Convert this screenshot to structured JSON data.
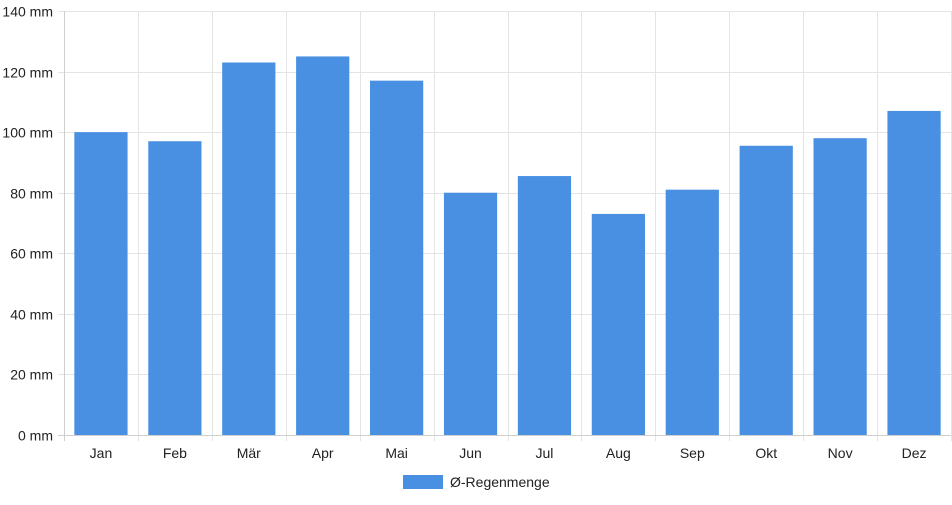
{
  "chart_data": {
    "type": "bar",
    "categories": [
      "Jan",
      "Feb",
      "Mär",
      "Apr",
      "Mai",
      "Jun",
      "Jul",
      "Aug",
      "Sep",
      "Okt",
      "Nov",
      "Dez"
    ],
    "series": [
      {
        "name": "Ø-Regenmenge",
        "color": "#4a90e2",
        "values": [
          100,
          97,
          123,
          125,
          117,
          80,
          85.5,
          73,
          81,
          95.5,
          98,
          107
        ]
      }
    ],
    "ylim": [
      0,
      140
    ],
    "yticks": [
      0,
      20,
      40,
      60,
      80,
      100,
      120,
      140
    ],
    "y_tick_suffix": " mm",
    "grid": true,
    "legend_position": "bottom-center",
    "title": "",
    "xlabel": "",
    "ylabel": ""
  }
}
